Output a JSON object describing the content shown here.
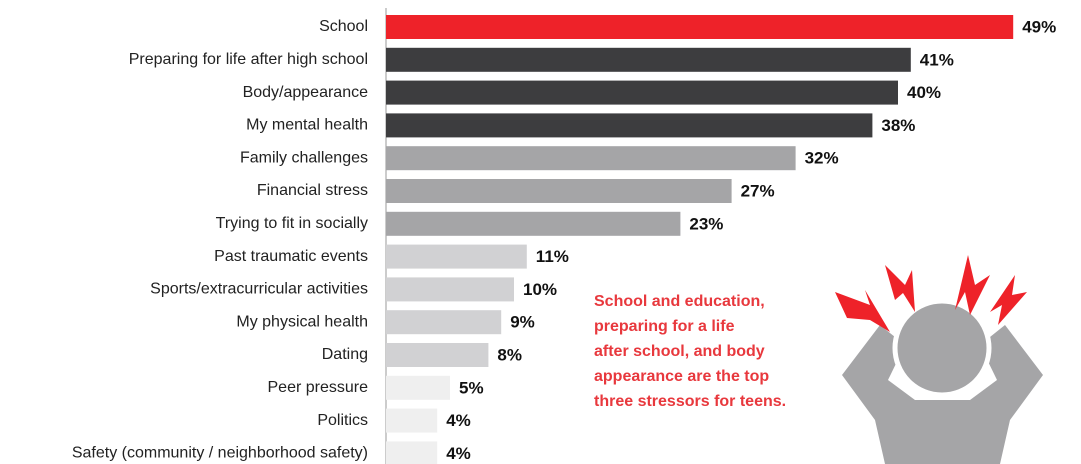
{
  "chart_data": {
    "type": "bar",
    "orientation": "horizontal",
    "categories": [
      "School",
      "Preparing for life after high school",
      "Body/appearance",
      "My mental health",
      "Family challenges",
      "Financial stress",
      "Trying to fit in socially",
      "Past traumatic events",
      "Sports/extracurricular activities",
      "My physical health",
      "Dating",
      "Peer pressure",
      "Politics",
      "Safety (community / neighborhood safety)"
    ],
    "values": [
      49,
      41,
      40,
      38,
      32,
      27,
      23,
      11,
      10,
      9,
      8,
      5,
      4,
      4
    ],
    "value_labels": [
      "49%",
      "41%",
      "40%",
      "38%",
      "32%",
      "27%",
      "23%",
      "11%",
      "10%",
      "9%",
      "8%",
      "5%",
      "4%",
      "4%"
    ],
    "colors": [
      "#ee2229",
      "#3d3d3f",
      "#3d3d3f",
      "#3d3d3f",
      "#a5a5a7",
      "#a5a5a7",
      "#a5a5a7",
      "#d1d1d3",
      "#d1d1d3",
      "#d1d1d3",
      "#d1d1d3",
      "#efefef",
      "#efefef",
      "#efefef"
    ],
    "xlim": [
      0,
      50
    ],
    "annotation": [
      "School and education,",
      "preparing for a life",
      "after school, and body",
      "appearance are the top",
      "three stressors for teens."
    ]
  }
}
